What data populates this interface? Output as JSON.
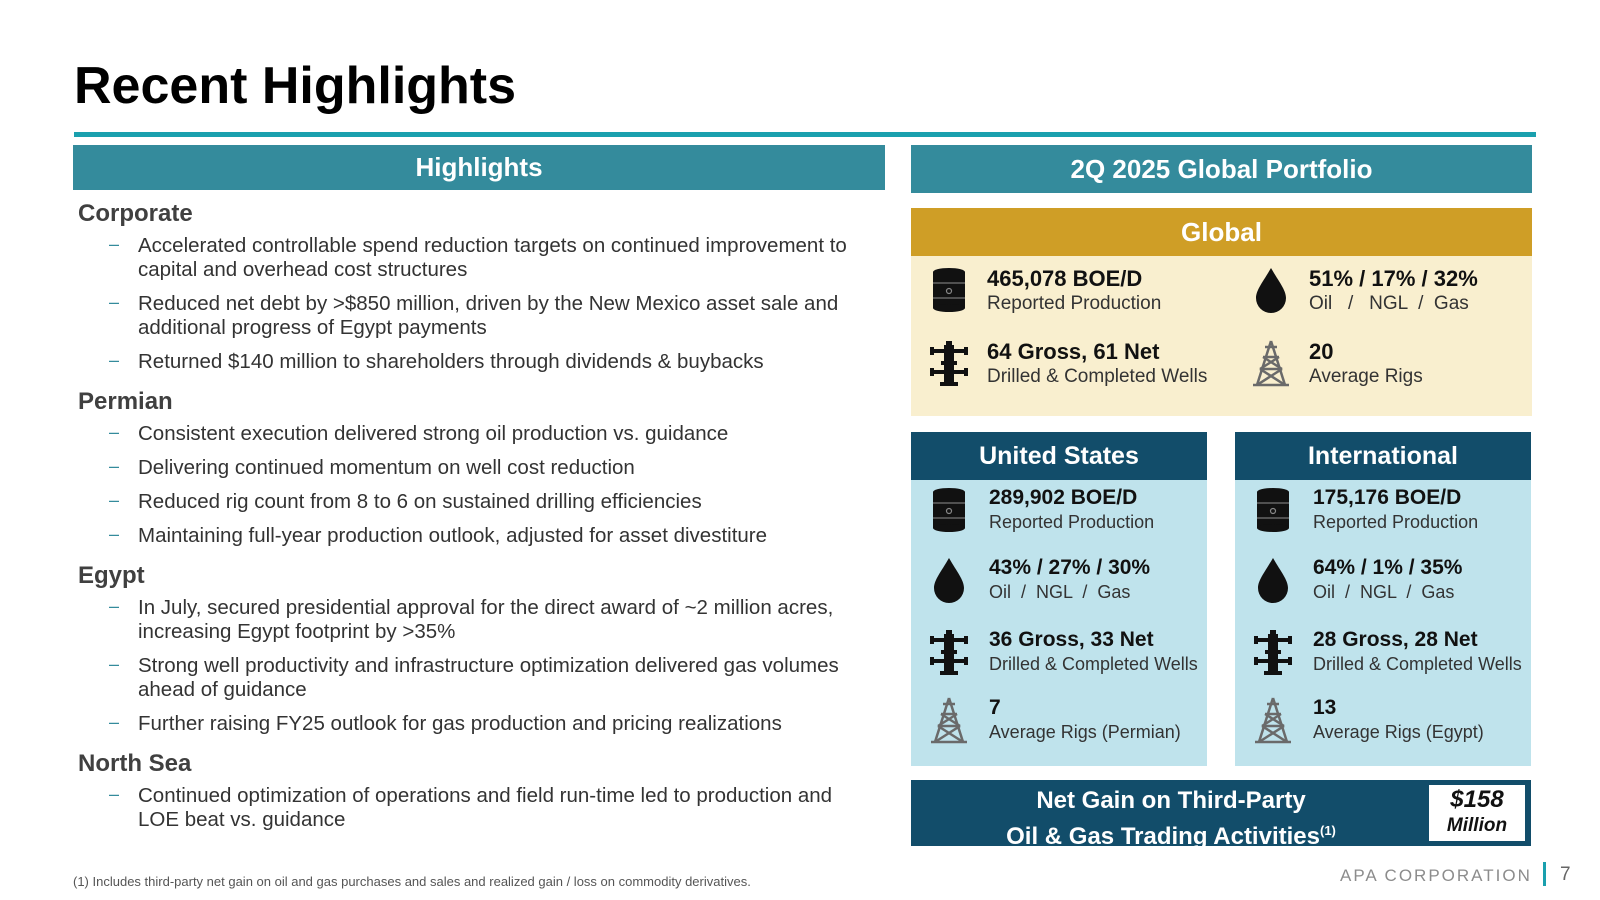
{
  "title": "Recent Highlights",
  "highlights": {
    "header": "Highlights",
    "sections": [
      {
        "title": "Corporate",
        "bullets": [
          "Accelerated controllable spend reduction targets on continued improvement to capital and overhead cost structures",
          "Reduced net debt by >$850 million, driven by the New Mexico asset sale and additional progress of Egypt payments",
          "Returned $140 million to shareholders through dividends & buybacks"
        ]
      },
      {
        "title": "Permian",
        "bullets": [
          "Consistent execution delivered strong oil production vs. guidance",
          "Delivering continued momentum on well cost reduction",
          "Reduced rig count from 8 to 6 on sustained drilling efficiencies",
          "Maintaining full-year production outlook, adjusted for asset divestiture"
        ]
      },
      {
        "title": "Egypt",
        "bullets": [
          "In July, secured presidential approval for the direct award of ~2 million acres, increasing Egypt footprint by >35%",
          "Strong well productivity and infrastructure optimization delivered gas volumes ahead of guidance",
          "Further raising FY25 outlook for gas production and pricing realizations"
        ]
      },
      {
        "title": "North Sea",
        "bullets": [
          "Continued optimization of operations and field run-time led to production and LOE beat vs. guidance"
        ]
      }
    ]
  },
  "footnote": "(1)  Includes third-party net gain on oil and gas purchases and sales and realized gain / loss on commodity derivatives.",
  "portfolio": {
    "header": "2Q 2025 Global Portfolio",
    "global": {
      "header": "Global",
      "production": {
        "value": "465,078 BOE/D",
        "label": "Reported Production",
        "icon": "oil-barrel-icon"
      },
      "mix": {
        "value": "51% / 17% / 32%",
        "label": "Oil   /   NGL  /  Gas",
        "icon": "oil-drop-icon"
      },
      "wells": {
        "value": "64 Gross, 61 Net",
        "label": "Drilled & Completed Wells",
        "icon": "wellhead-icon"
      },
      "rigs": {
        "value": "20",
        "label": "Average Rigs",
        "icon": "drilling-rig-icon"
      }
    },
    "us": {
      "header": "United States",
      "production": {
        "value": "289,902 BOE/D",
        "label": "Reported Production"
      },
      "mix": {
        "value": "43% / 27% / 30%",
        "label": "Oil  /  NGL  /  Gas"
      },
      "wells": {
        "value": "36 Gross, 33 Net",
        "label": "Drilled & Completed Wells"
      },
      "rigs": {
        "value": "7",
        "label": "Average Rigs (Permian)"
      }
    },
    "international": {
      "header": "International",
      "production": {
        "value": "175,176 BOE/D",
        "label": "Reported Production"
      },
      "mix": {
        "value": "64% / 1% / 35%",
        "label": "Oil  /  NGL  /  Gas"
      },
      "wells": {
        "value": "28 Gross, 28 Net",
        "label": "Drilled & Completed Wells"
      },
      "rigs": {
        "value": "13",
        "label": "Average Rigs (Egypt)"
      }
    },
    "gain": {
      "line1": "Net Gain on Third-Party",
      "line2": "Oil & Gas Trading Activities",
      "footnote_mark": "(1)",
      "value": "$158",
      "unit": "Million"
    }
  },
  "brand": "APA CORPORATION",
  "page_number": "7",
  "colors": {
    "teal": "#348b9c",
    "gold": "#cf9e26",
    "navy": "#124d6a",
    "light_blue": "#bfe3ec",
    "cream": "#f9efcf"
  }
}
